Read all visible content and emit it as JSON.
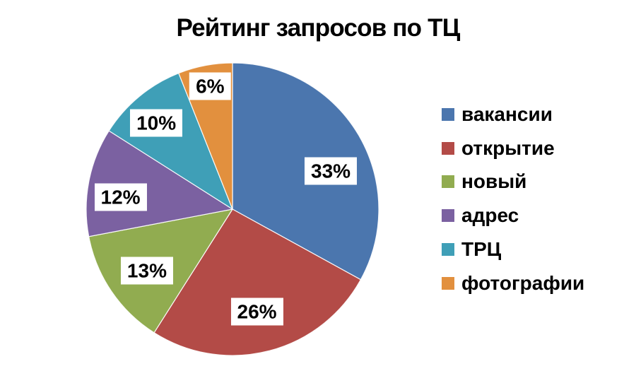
{
  "chart_data": {
    "type": "pie",
    "title": "Рейтинг запросов по ТЦ",
    "direction": "clockwise",
    "start_angle_deg": 0,
    "legend_position": "right",
    "background_color": "#ffffff",
    "title_color": "#000000",
    "categories": [
      "вакансии",
      "открытие",
      "новый",
      "адрес",
      "ТРЦ",
      "фотографии"
    ],
    "values": [
      33,
      26,
      13,
      12,
      10,
      6
    ],
    "unit": "%",
    "slice_labels": [
      "33%",
      "26%",
      "13%",
      "12%",
      "10%",
      "6%"
    ],
    "colors": [
      "#4b76ae",
      "#b34b47",
      "#91ac50",
      "#7b61a1",
      "#3f9fb7",
      "#e2903e"
    ],
    "slice_label_text_color": "#000000",
    "slice_label_background": "#ffffff",
    "legend_text_color": "#000000"
  }
}
